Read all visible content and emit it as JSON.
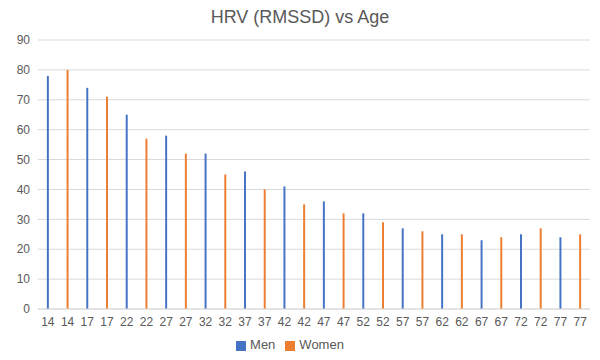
{
  "chart_data": {
    "type": "bar",
    "title": "HRV (RMSSD) vs Age",
    "categories": [
      "14",
      "14",
      "17",
      "17",
      "22",
      "22",
      "27",
      "27",
      "32",
      "32",
      "37",
      "37",
      "42",
      "42",
      "47",
      "47",
      "52",
      "52",
      "57",
      "57",
      "62",
      "62",
      "67",
      "67",
      "72",
      "72",
      "77",
      "77"
    ],
    "series": [
      {
        "name": "Men",
        "color": "#4472c4",
        "values": [
          78,
          null,
          74,
          null,
          65,
          null,
          58,
          null,
          52,
          null,
          46,
          null,
          41,
          null,
          36,
          null,
          32,
          null,
          27,
          null,
          25,
          null,
          23,
          null,
          25,
          null,
          24,
          null
        ]
      },
      {
        "name": "Women",
        "color": "#ed7d31",
        "values": [
          null,
          80,
          null,
          71,
          null,
          57,
          null,
          52,
          null,
          45,
          null,
          40,
          null,
          35,
          null,
          32,
          null,
          29,
          null,
          26,
          null,
          25,
          null,
          24,
          null,
          27,
          null,
          25
        ]
      }
    ],
    "ylim": [
      0,
      90
    ],
    "yticks": [
      0,
      10,
      20,
      30,
      40,
      50,
      60,
      70,
      80,
      90
    ],
    "grid": true,
    "legend": "bottom",
    "stacked": true
  }
}
